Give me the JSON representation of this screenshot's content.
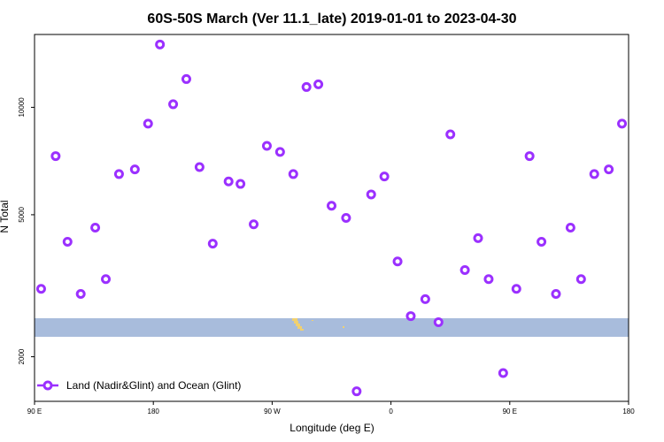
{
  "chart_data": {
    "type": "scatter",
    "title": "60S-50S March (Ver 11.1_late)   2019-01-01 to 2023-04-30",
    "xlabel": "Longitude (deg E)",
    "ylabel": "N Total",
    "xlim": [
      90,
      540
    ],
    "ylim": [
      1500,
      16000
    ],
    "yscale": "log",
    "x_ticks": [
      {
        "value": 90,
        "label": "90 E"
      },
      {
        "value": 180,
        "label": "180"
      },
      {
        "value": 270,
        "label": "90 W"
      },
      {
        "value": 360,
        "label": "0"
      },
      {
        "value": 450,
        "label": "90 E"
      },
      {
        "value": 540,
        "label": "180"
      }
    ],
    "y_ticks": [
      {
        "value": 2000,
        "label": "2000"
      },
      {
        "value": 5000,
        "label": "5000"
      },
      {
        "value": 10000,
        "label": "10000"
      }
    ],
    "legend": {
      "position": "bottom-left",
      "label": "Land (Nadir&Glint) and Ocean (Glint)"
    },
    "band_color": "#a8bcdc",
    "land_color": "#f0d070",
    "marker_color": "#9b30ff",
    "series": [
      {
        "name": "Land (Nadir&Glint) and Ocean (Glint)",
        "points": [
          [
            95,
            3100
          ],
          [
            106,
            7300
          ],
          [
            115,
            4200
          ],
          [
            125,
            3000
          ],
          [
            136,
            4600
          ],
          [
            144,
            3300
          ],
          [
            154,
            6500
          ],
          [
            166,
            6700
          ],
          [
            176,
            9000
          ],
          [
            185,
            15000
          ],
          [
            195,
            10200
          ],
          [
            205,
            12000
          ],
          [
            215,
            6800
          ],
          [
            225,
            4150
          ],
          [
            237,
            6200
          ],
          [
            246,
            6100
          ],
          [
            256,
            4700
          ],
          [
            266,
            7800
          ],
          [
            276,
            7500
          ],
          [
            286,
            6500
          ],
          [
            296,
            11400
          ],
          [
            305,
            11600
          ],
          [
            315,
            5300
          ],
          [
            326,
            4900
          ],
          [
            334,
            1600
          ],
          [
            345,
            5700
          ],
          [
            355,
            6400
          ],
          [
            365,
            3700
          ],
          [
            375,
            2600
          ],
          [
            386,
            2900
          ],
          [
            396,
            2500
          ],
          [
            405,
            8400
          ],
          [
            416,
            3500
          ],
          [
            426,
            4300
          ],
          [
            434,
            3300
          ],
          [
            445,
            1800
          ],
          [
            455,
            3100
          ],
          [
            465,
            7300
          ],
          [
            474,
            4200
          ],
          [
            485,
            3000
          ],
          [
            496,
            4600
          ],
          [
            504,
            3300
          ],
          [
            514,
            6500
          ],
          [
            525,
            6700
          ],
          [
            535,
            9000
          ]
        ]
      }
    ]
  }
}
